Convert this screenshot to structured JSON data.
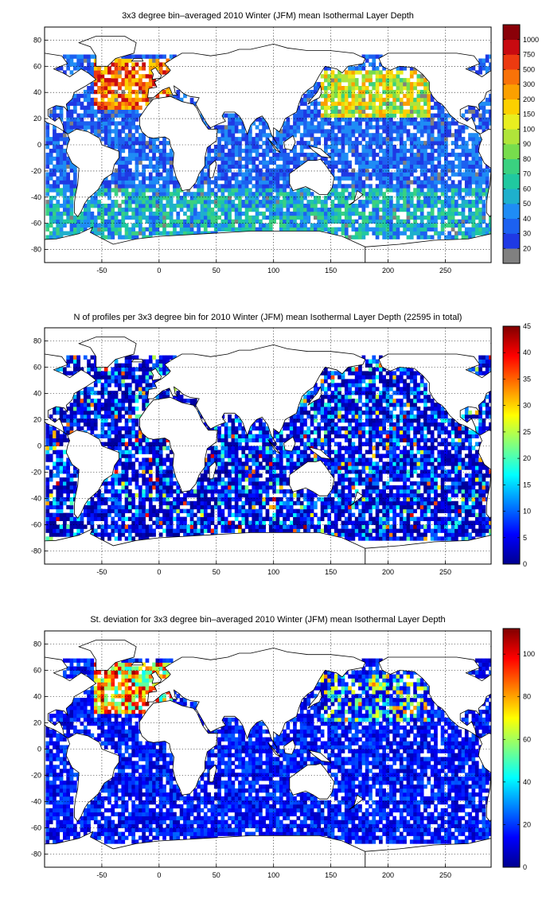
{
  "panels": [
    {
      "id": "mean",
      "title": "3x3 degree bin–averaged 2010 Winter (JFM) mean Isothermal Layer Depth",
      "colorbar": {
        "type": "categorical",
        "labels": [
          "20",
          "30",
          "40",
          "50",
          "60",
          "70",
          "80",
          "90",
          "100",
          "150",
          "200",
          "300",
          "500",
          "750",
          "1000"
        ],
        "colors": [
          "#808080",
          "#1f39e4",
          "#1c61f0",
          "#1f8cf5",
          "#1eb0cc",
          "#20c8a0",
          "#3ad180",
          "#77dd4d",
          "#b0e53a",
          "#e8ee1f",
          "#fcd000",
          "#fba000",
          "#f97208",
          "#ec3a10",
          "#c80a10",
          "#8a0008"
        ]
      }
    },
    {
      "id": "count",
      "title": "N of profiles per 3x3 degree bin for 2010 Winter (JFM) mean Isothermal Layer Depth  (22595 in total)",
      "colorbar": {
        "type": "continuous",
        "min": 0,
        "max": 45,
        "ticks": [
          0,
          5,
          10,
          15,
          20,
          25,
          30,
          35,
          40,
          45
        ]
      }
    },
    {
      "id": "std",
      "title": "St. deviation for 3x3 degree bin–averaged 2010 Winter (JFM) mean Isothermal Layer Depth",
      "colorbar": {
        "type": "continuous",
        "min": 0,
        "max": 112,
        "ticks": [
          0,
          20,
          40,
          60,
          80,
          100
        ]
      }
    }
  ],
  "map_axes": {
    "lon_ticks": [
      -50,
      0,
      50,
      100,
      150,
      200,
      250
    ],
    "lat_ticks": [
      -80,
      -60,
      -40,
      -20,
      0,
      20,
      40,
      60,
      80
    ],
    "lon_range": [
      -100,
      290
    ],
    "lat_range": [
      -90,
      90
    ]
  }
}
